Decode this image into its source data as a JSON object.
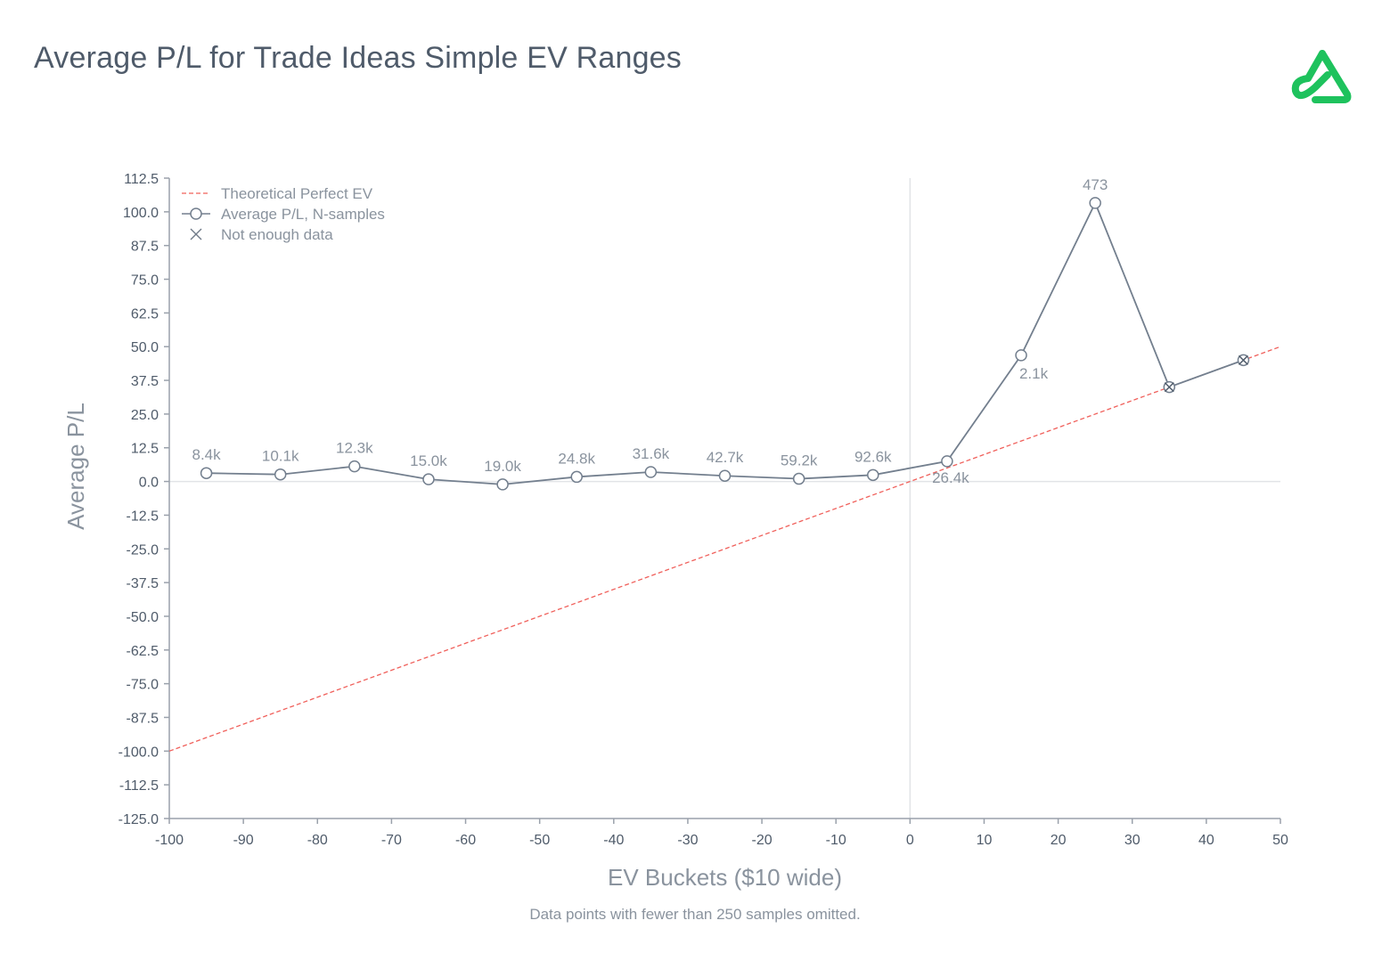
{
  "header": {
    "title": "Average P/L for Trade Ideas Simple EV Ranges"
  },
  "logo": {
    "icon": "brand-logo-icon",
    "color": "#1ec25d"
  },
  "footnote": "Data points with fewer than 250 samples omitted.",
  "colors": {
    "text": "#4f5b6a",
    "axis_text": "#7d8693",
    "series_line": "#737f8e",
    "reference_line": "#f0605b",
    "grid_line": "#e2e4e7"
  },
  "chart_data": {
    "type": "line",
    "title": "Average P/L for Trade Ideas Simple EV Ranges",
    "xlabel": "EV Buckets ($10 wide)",
    "ylabel": "Average P/L",
    "xlim": [
      -100,
      50
    ],
    "ylim": [
      -125,
      112.5
    ],
    "x_ticks": [
      -100,
      -90,
      -80,
      -70,
      -60,
      -50,
      -40,
      -30,
      -20,
      -10,
      0,
      10,
      20,
      30,
      40,
      50
    ],
    "x_tick_labels": [
      "-100",
      "-90",
      "-80",
      "-70",
      "-60",
      "-50",
      "-40",
      "-30",
      "-20",
      "-10",
      "0",
      "10",
      "20",
      "30",
      "40",
      "50"
    ],
    "y_ticks": [
      112.5,
      100,
      87.5,
      75,
      62.5,
      50,
      37.5,
      25,
      12.5,
      0,
      -12.5,
      -25,
      -37.5,
      -50,
      -62.5,
      -75,
      -87.5,
      -100,
      -112.5,
      -125
    ],
    "y_tick_labels": [
      "112.5",
      "100.0",
      "87.5",
      "75.0",
      "62.5",
      "50.0",
      "37.5",
      "25.0",
      "12.5",
      "0.0",
      "-12.5",
      "-25.0",
      "-37.5",
      "-50.0",
      "-62.5",
      "-75.0",
      "-87.5",
      "-100.0",
      "-112.5",
      "-125.0"
    ],
    "legend": {
      "position": "top-left",
      "entries": [
        "Theoretical Perfect EV",
        "Average P/L, N-samples",
        "Not enough data"
      ]
    },
    "series": [
      {
        "name": "Theoretical Perfect EV",
        "style": "dashed",
        "x": [
          -100,
          50
        ],
        "y": [
          -100,
          50
        ]
      },
      {
        "name": "Average P/L, N-samples",
        "style": "line-marker",
        "x": [
          -95,
          -85,
          -75,
          -65,
          -55,
          -45,
          -35,
          -25,
          -15,
          -5,
          5,
          15,
          25
        ],
        "y": [
          3.1,
          2.6,
          5.6,
          0.8,
          -1.1,
          1.7,
          3.5,
          2.1,
          1.0,
          2.4,
          7.5,
          46.8,
          103.3
        ],
        "labels": [
          "8.4k",
          "10.1k",
          "12.3k",
          "15.0k",
          "19.0k",
          "24.8k",
          "31.6k",
          "42.7k",
          "59.2k",
          "92.6k",
          "26.4k",
          "2.1k",
          "473"
        ]
      },
      {
        "name": "Not enough data",
        "style": "cross-marker",
        "x": [
          35,
          45
        ],
        "y": [
          35,
          45
        ]
      }
    ],
    "reference_lines": {
      "x_zero": true,
      "y_zero": true
    },
    "grid": false
  }
}
